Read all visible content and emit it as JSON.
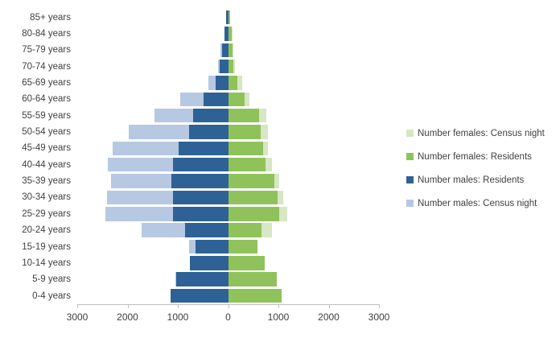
{
  "background": "#ffffff",
  "text_color": "#3f3f3f",
  "axis_color": "#bfbfbf",
  "chart_data": {
    "type": "bar",
    "subtype": "population-pyramid",
    "title": "",
    "grid": false,
    "legend_position": "right",
    "categories": [
      "85+ years",
      "80-84 years",
      "75-79 years",
      "70-74 years",
      "65-69 years",
      "60-64 years",
      "55-59 years",
      "50-54 years",
      "45-49 years",
      "40-44 years",
      "35-39 years",
      "30-34 years",
      "25-29 years",
      "20-24 years",
      "15-19 years",
      "10-14 years",
      "5-9 years",
      "0-4 years"
    ],
    "x_axis": {
      "tick_labels": [
        "3000",
        "2000",
        "1000",
        "0",
        "1000",
        "2000",
        "3000"
      ],
      "max_each_side": 3000,
      "units_per_tick": 1000
    },
    "series": [
      {
        "name": "Number females: Census night",
        "side": "right",
        "layer": "back",
        "color": "#d7e6c3",
        "values": [
          45,
          85,
          105,
          140,
          275,
          425,
          760,
          790,
          790,
          865,
          1015,
          1095,
          1175,
          870,
          570,
          720,
          950,
          1060
        ]
      },
      {
        "name": "Number females: Residents",
        "side": "right",
        "layer": "front",
        "color": "#90c25c",
        "values": [
          45,
          65,
          80,
          105,
          185,
          330,
          620,
          650,
          700,
          750,
          920,
          990,
          1015,
          670,
          580,
          735,
          960,
          1070
        ]
      },
      {
        "name": "Number males: Residents",
        "side": "left",
        "layer": "front",
        "color": "#2e6296",
        "values": [
          40,
          70,
          125,
          165,
          245,
          490,
          690,
          780,
          990,
          1100,
          1130,
          1100,
          1100,
          850,
          650,
          760,
          1030,
          1150
        ]
      },
      {
        "name": "Number males: Census night",
        "side": "left",
        "layer": "back",
        "color": "#b7c8e2",
        "values": [
          40,
          70,
          150,
          200,
          385,
          955,
          1470,
          1980,
          2300,
          2390,
          2330,
          2410,
          2440,
          1720,
          780,
          740,
          1050,
          1120
        ]
      }
    ],
    "legend_order": [
      "Number females: Census night",
      "Number females: Residents",
      "Number males: Residents",
      "Number males: Census night"
    ]
  }
}
